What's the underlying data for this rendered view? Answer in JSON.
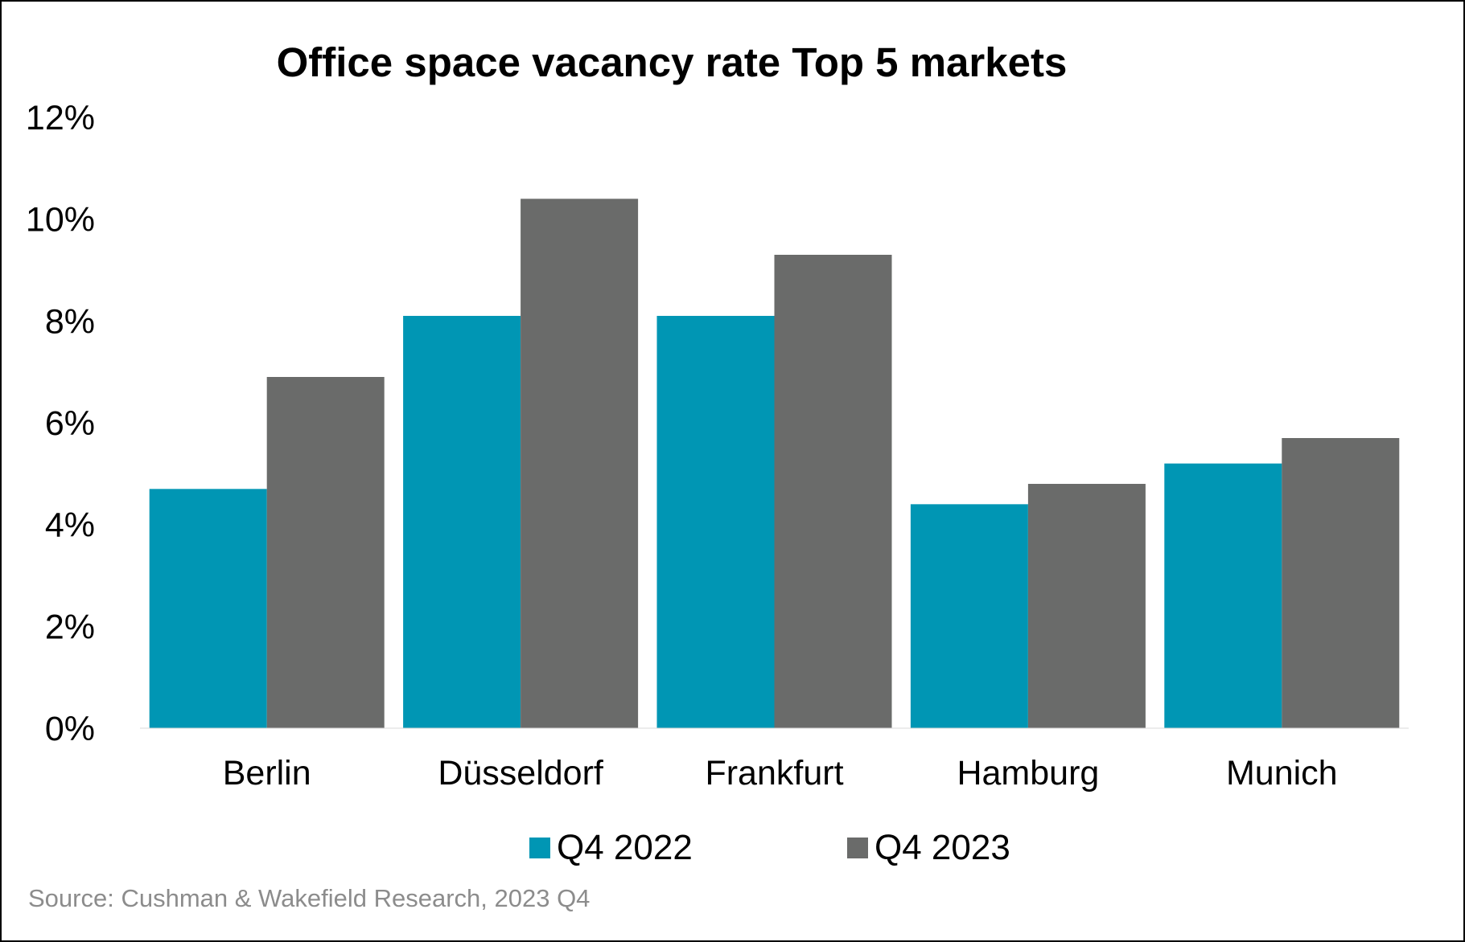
{
  "chart_data": {
    "type": "bar",
    "title": "Office space vacancy rate Top 5 markets",
    "categories": [
      "Berlin",
      "Düsseldorf",
      "Frankfurt",
      "Hamburg",
      "Munich"
    ],
    "series": [
      {
        "name": "Q4 2022",
        "color": "#0096b4",
        "values": [
          4.7,
          8.1,
          8.1,
          4.4,
          5.2
        ]
      },
      {
        "name": "Q4 2023",
        "color": "#6a6b6a",
        "values": [
          6.9,
          10.4,
          9.3,
          4.8,
          5.7
        ]
      }
    ],
    "ylim": [
      0,
      12
    ],
    "y_ticks": [
      "0%",
      "2%",
      "4%",
      "6%",
      "8%",
      "10%",
      "12%"
    ],
    "y_tick_values": [
      0,
      2,
      4,
      6,
      8,
      10,
      12
    ],
    "grid": false,
    "legend_position": "bottom"
  },
  "source": "Source: Cushman & Wakefield Research,  2023 Q4"
}
